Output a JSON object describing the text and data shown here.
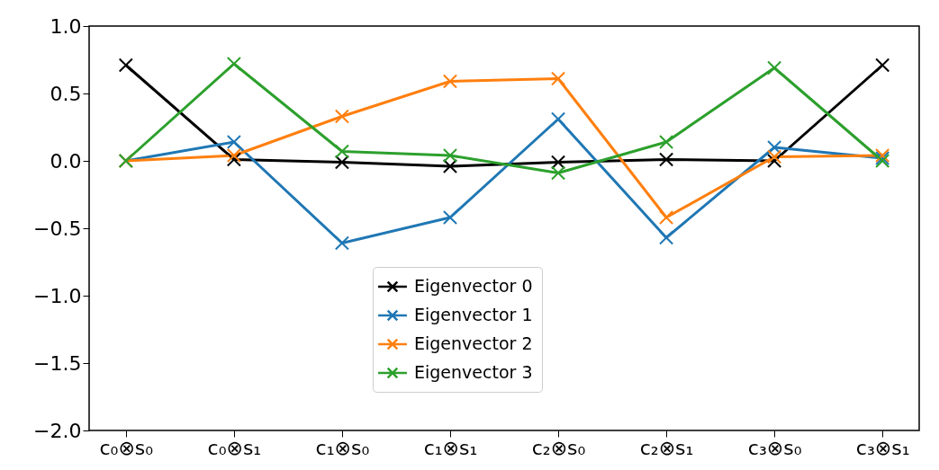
{
  "chart_data": {
    "type": "line",
    "categories": [
      "c₀⊗s₀",
      "c₀⊗s₁",
      "c₁⊗s₀",
      "c₁⊗s₁",
      "c₂⊗s₀",
      "c₂⊗s₁",
      "c₃⊗s₀",
      "c₃⊗s₁"
    ],
    "series": [
      {
        "name": "Eigenvector 0",
        "color": "#000000",
        "values": [
          0.71,
          0.01,
          -0.01,
          -0.04,
          -0.01,
          0.01,
          0.0,
          0.71
        ]
      },
      {
        "name": "Eigenvector 1",
        "color": "#1f77b4",
        "values": [
          0.0,
          0.14,
          -0.61,
          -0.42,
          0.31,
          -0.57,
          0.1,
          0.02
        ]
      },
      {
        "name": "Eigenvector 2",
        "color": "#ff7f0e",
        "values": [
          0.0,
          0.04,
          0.33,
          0.59,
          0.61,
          -0.42,
          0.03,
          0.04
        ]
      },
      {
        "name": "Eigenvector 3",
        "color": "#2ca02c",
        "values": [
          0.0,
          0.72,
          0.07,
          0.04,
          -0.09,
          0.14,
          0.69,
          0.0
        ]
      }
    ],
    "ylim": [
      -2.0,
      1.0
    ],
    "yticks": [
      {
        "value": -2.0,
        "label": "−2.0"
      },
      {
        "value": -1.5,
        "label": "−1.5"
      },
      {
        "value": -1.0,
        "label": "−1.0"
      },
      {
        "value": -0.5,
        "label": "−0.5"
      },
      {
        "value": 0.0,
        "label": "0.0"
      },
      {
        "value": 0.5,
        "label": "0.5"
      },
      {
        "value": 1.0,
        "label": "1.0"
      }
    ],
    "marker": "cross",
    "line_style": "solid",
    "grid": false,
    "legend": "bottom"
  }
}
